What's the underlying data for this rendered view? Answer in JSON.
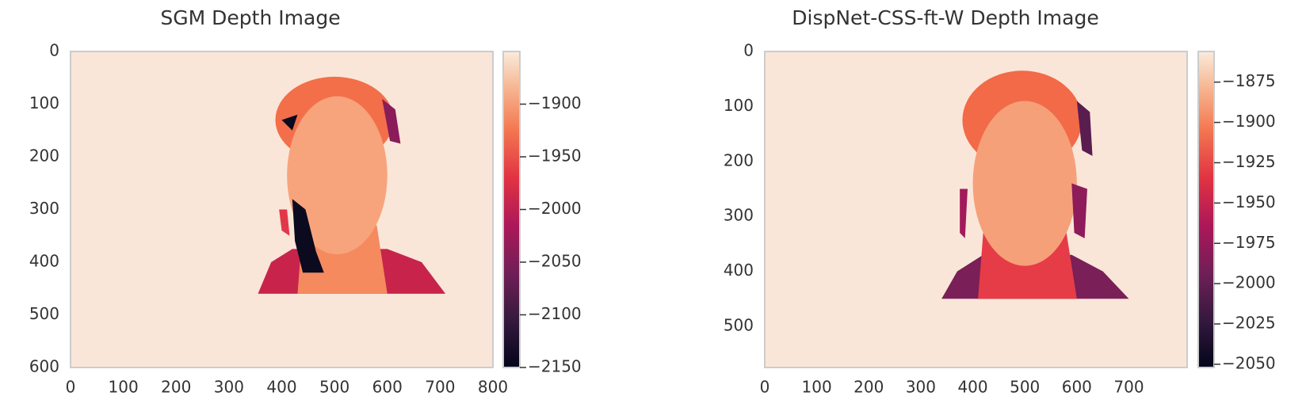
{
  "chart_data": [
    {
      "type": "image",
      "title": "SGM Depth Image",
      "xlim": [
        0,
        800
      ],
      "ylim": [
        600,
        0
      ],
      "xticks": [
        0,
        100,
        200,
        300,
        400,
        500,
        600,
        700,
        800
      ],
      "yticks": [
        0,
        100,
        200,
        300,
        400,
        500,
        600
      ],
      "colorbar": {
        "clim": [
          -2150,
          -1850
        ],
        "ticks": [
          {
            "value": -1900,
            "label": "−1900"
          },
          {
            "value": -1950,
            "label": "−1950"
          },
          {
            "value": -2000,
            "label": "−2000"
          },
          {
            "value": -2050,
            "label": "−2050"
          },
          {
            "value": -2100,
            "label": "−2100"
          },
          {
            "value": -2150,
            "label": "−2150"
          }
        ]
      }
    },
    {
      "type": "image",
      "title": "DispNet-CSS-ft-W Depth Image",
      "xlim": [
        0,
        812
      ],
      "ylim": [
        575,
        0
      ],
      "xticks": [
        0,
        100,
        200,
        300,
        400,
        500,
        600,
        700
      ],
      "yticks": [
        0,
        100,
        200,
        300,
        400,
        500
      ],
      "colorbar": {
        "clim": [
          -2052,
          -1856
        ],
        "ticks": [
          {
            "value": -1875,
            "label": "−1875"
          },
          {
            "value": -1900,
            "label": "−1900"
          },
          {
            "value": -1925,
            "label": "−1925"
          },
          {
            "value": -1950,
            "label": "−1950"
          },
          {
            "value": -1975,
            "label": "−1975"
          },
          {
            "value": -2000,
            "label": "−2000"
          },
          {
            "value": -2025,
            "label": "−2025"
          },
          {
            "value": -2050,
            "label": "−2050"
          }
        ]
      }
    }
  ]
}
